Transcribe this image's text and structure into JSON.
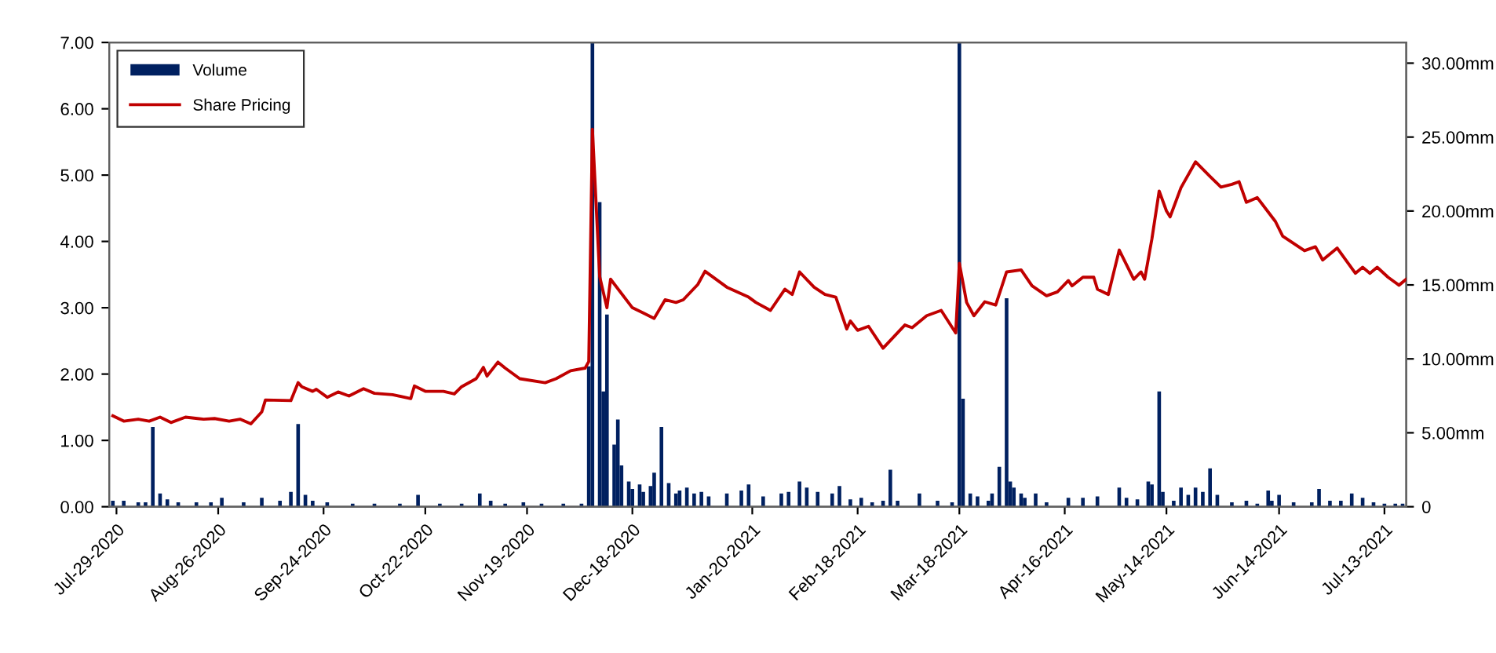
{
  "chart_data": {
    "type": "line",
    "xlim": [
      "2020-07-27",
      "2021-07-19"
    ],
    "xticks": [
      {
        "value": "2020-07-29",
        "label": "Jul-29-2020"
      },
      {
        "value": "2020-08-26",
        "label": "Aug-26-2020"
      },
      {
        "value": "2020-09-24",
        "label": "Sep-24-2020"
      },
      {
        "value": "2020-10-22",
        "label": "Oct-22-2020"
      },
      {
        "value": "2020-11-19",
        "label": "Nov-19-2020"
      },
      {
        "value": "2020-12-18",
        "label": "Dec-18-2020"
      },
      {
        "value": "2021-01-20",
        "label": "Jan-20-2021"
      },
      {
        "value": "2021-02-18",
        "label": "Feb-18-2021"
      },
      {
        "value": "2021-03-18",
        "label": "Mar-18-2021"
      },
      {
        "value": "2021-04-16",
        "label": "Apr-16-2021"
      },
      {
        "value": "2021-05-14",
        "label": "May-14-2021"
      },
      {
        "value": "2021-06-14",
        "label": "Jun-14-2021"
      },
      {
        "value": "2021-07-13",
        "label": "Jul-13-2021"
      }
    ],
    "ylim": [
      0,
      7
    ],
    "yticks": [
      {
        "value": 0,
        "label": "0.00"
      },
      {
        "value": 1,
        "label": "1.00"
      },
      {
        "value": 2,
        "label": "2.00"
      },
      {
        "value": 3,
        "label": "3.00"
      },
      {
        "value": 4,
        "label": "4.00"
      },
      {
        "value": 5,
        "label": "5.00"
      },
      {
        "value": 6,
        "label": "6.00"
      },
      {
        "value": 7,
        "label": "7.00"
      }
    ],
    "y2lim": [
      0,
      31.4
    ],
    "y2ticks": [
      {
        "value": 0,
        "label": "0"
      },
      {
        "value": 5,
        "label": "5.00mm"
      },
      {
        "value": 10,
        "label": "10.00mm"
      },
      {
        "value": 15,
        "label": "15.00mm"
      },
      {
        "value": 20,
        "label": "20.00mm"
      },
      {
        "value": 25,
        "label": "25.00mm"
      },
      {
        "value": 30,
        "label": "30.00mm"
      }
    ],
    "grid": false,
    "legend": "top left",
    "series": [
      {
        "name": "Volume",
        "type": "bar",
        "axis": "y2",
        "color": "#002060",
        "x": [
          "2020-07-28",
          "2020-07-31",
          "2020-08-04",
          "2020-08-06",
          "2020-08-08",
          "2020-08-10",
          "2020-08-12",
          "2020-08-15",
          "2020-08-20",
          "2020-08-24",
          "2020-08-27",
          "2020-09-02",
          "2020-09-07",
          "2020-09-12",
          "2020-09-15",
          "2020-09-17",
          "2020-09-19",
          "2020-09-21",
          "2020-09-25",
          "2020-10-02",
          "2020-10-08",
          "2020-10-15",
          "2020-10-20",
          "2020-10-26",
          "2020-11-01",
          "2020-11-06",
          "2020-11-09",
          "2020-11-13",
          "2020-11-18",
          "2020-11-23",
          "2020-11-29",
          "2020-12-04",
          "2020-12-06",
          "2020-12-07",
          "2020-12-09",
          "2020-12-10",
          "2020-12-11",
          "2020-12-13",
          "2020-12-14",
          "2020-12-15",
          "2020-12-17",
          "2020-12-18",
          "2020-12-20",
          "2020-12-21",
          "2020-12-23",
          "2020-12-24",
          "2020-12-26",
          "2020-12-28",
          "2020-12-30",
          "2020-12-31",
          "2021-01-02",
          "2021-01-04",
          "2021-01-06",
          "2021-01-08",
          "2021-01-13",
          "2021-01-17",
          "2021-01-19",
          "2021-01-23",
          "2021-01-28",
          "2021-01-30",
          "2021-02-02",
          "2021-02-04",
          "2021-02-07",
          "2021-02-11",
          "2021-02-13",
          "2021-02-16",
          "2021-02-19",
          "2021-02-22",
          "2021-02-25",
          "2021-02-27",
          "2021-03-01",
          "2021-03-07",
          "2021-03-12",
          "2021-03-16",
          "2021-03-18",
          "2021-03-19",
          "2021-03-21",
          "2021-03-23",
          "2021-03-26",
          "2021-03-27",
          "2021-03-29",
          "2021-03-31",
          "2021-04-01",
          "2021-04-02",
          "2021-04-04",
          "2021-04-05",
          "2021-04-08",
          "2021-04-11",
          "2021-04-17",
          "2021-04-21",
          "2021-04-25",
          "2021-05-01",
          "2021-05-03",
          "2021-05-06",
          "2021-05-09",
          "2021-05-10",
          "2021-05-12",
          "2021-05-13",
          "2021-05-16",
          "2021-05-18",
          "2021-05-20",
          "2021-05-22",
          "2021-05-24",
          "2021-05-26",
          "2021-05-28",
          "2021-06-01",
          "2021-06-05",
          "2021-06-08",
          "2021-06-11",
          "2021-06-12",
          "2021-06-14",
          "2021-06-18",
          "2021-06-23",
          "2021-06-25",
          "2021-06-28",
          "2021-07-01",
          "2021-07-04",
          "2021-07-07",
          "2021-07-10",
          "2021-07-13",
          "2021-07-16",
          "2021-07-18"
        ],
        "values": [
          0.4,
          0.4,
          0.3,
          0.3,
          5.4,
          0.9,
          0.5,
          0.3,
          0.3,
          0.3,
          0.6,
          0.3,
          0.6,
          0.4,
          1.0,
          5.6,
          0.8,
          0.4,
          0.3,
          0.2,
          0.2,
          0.2,
          0.8,
          0.2,
          0.2,
          0.9,
          0.4,
          0.2,
          0.3,
          0.2,
          0.2,
          0.2,
          9.5,
          31.4,
          20.6,
          7.8,
          13.0,
          4.2,
          5.9,
          2.8,
          1.7,
          1.2,
          1.5,
          1.0,
          1.4,
          2.3,
          5.4,
          1.6,
          0.9,
          1.1,
          1.3,
          0.9,
          1.0,
          0.7,
          0.9,
          1.1,
          1.5,
          0.7,
          0.9,
          1.0,
          1.7,
          1.3,
          1.0,
          0.9,
          1.4,
          0.5,
          0.6,
          0.3,
          0.4,
          2.5,
          0.4,
          0.9,
          0.4,
          0.3,
          31.4,
          7.3,
          0.9,
          0.7,
          0.4,
          0.9,
          2.7,
          14.1,
          1.7,
          1.3,
          0.9,
          0.6,
          0.9,
          0.3,
          0.6,
          0.6,
          0.7,
          1.3,
          0.6,
          0.5,
          1.7,
          1.5,
          7.8,
          1.0,
          0.4,
          1.3,
          0.8,
          1.3,
          1.0,
          2.6,
          0.8,
          0.3,
          0.4,
          0.2,
          1.1,
          0.4,
          0.8,
          0.3,
          0.3,
          1.2,
          0.4,
          0.4,
          0.9,
          0.6,
          0.3,
          0.2,
          0.2,
          0.2
        ]
      },
      {
        "name": "Share Pricing",
        "axis": "y",
        "color": "#c00000",
        "x": [
          "2020-07-28",
          "2020-07-31",
          "2020-08-04",
          "2020-08-07",
          "2020-08-10",
          "2020-08-13",
          "2020-08-17",
          "2020-08-22",
          "2020-08-25",
          "2020-08-29",
          "2020-09-01",
          "2020-09-04",
          "2020-09-07",
          "2020-09-08",
          "2020-09-15",
          "2020-09-17",
          "2020-09-18",
          "2020-09-21",
          "2020-09-22",
          "2020-09-25",
          "2020-09-28",
          "2020-10-01",
          "2020-10-05",
          "2020-10-08",
          "2020-10-13",
          "2020-10-18",
          "2020-10-19",
          "2020-10-22",
          "2020-10-27",
          "2020-10-30",
          "2020-11-01",
          "2020-11-05",
          "2020-11-07",
          "2020-11-08",
          "2020-11-11",
          "2020-11-13",
          "2020-11-17",
          "2020-11-24",
          "2020-11-27",
          "2020-12-01",
          "2020-12-05",
          "2020-12-06",
          "2020-12-07",
          "2020-12-09",
          "2020-12-11",
          "2020-12-12",
          "2020-12-18",
          "2020-12-21",
          "2020-12-24",
          "2020-12-27",
          "2020-12-30",
          "2021-01-01",
          "2021-01-05",
          "2021-01-07",
          "2021-01-13",
          "2021-01-19",
          "2021-01-21",
          "2021-01-25",
          "2021-01-29",
          "2021-01-31",
          "2021-02-02",
          "2021-02-06",
          "2021-02-09",
          "2021-02-12",
          "2021-02-15",
          "2021-02-16",
          "2021-02-18",
          "2021-02-21",
          "2021-02-25",
          "2021-03-03",
          "2021-03-05",
          "2021-03-09",
          "2021-03-13",
          "2021-03-17",
          "2021-03-18",
          "2021-03-20",
          "2021-03-22",
          "2021-03-25",
          "2021-03-28",
          "2021-03-31",
          "2021-04-04",
          "2021-04-07",
          "2021-04-11",
          "2021-04-14",
          "2021-04-17",
          "2021-04-18",
          "2021-04-21",
          "2021-04-24",
          "2021-04-25",
          "2021-04-28",
          "2021-05-01",
          "2021-05-05",
          "2021-05-07",
          "2021-05-08",
          "2021-05-10",
          "2021-05-12",
          "2021-05-14",
          "2021-05-15",
          "2021-05-18",
          "2021-05-22",
          "2021-05-26",
          "2021-05-29",
          "2021-06-01",
          "2021-06-03",
          "2021-06-05",
          "2021-06-08",
          "2021-06-13",
          "2021-06-15",
          "2021-06-21",
          "2021-06-24",
          "2021-06-26",
          "2021-06-30",
          "2021-07-05",
          "2021-07-07",
          "2021-07-09",
          "2021-07-11",
          "2021-07-14",
          "2021-07-17",
          "2021-07-19"
        ],
        "values": [
          1.37,
          1.29,
          1.32,
          1.29,
          1.35,
          1.27,
          1.35,
          1.32,
          1.33,
          1.29,
          1.32,
          1.25,
          1.43,
          1.61,
          1.6,
          1.87,
          1.81,
          1.74,
          1.77,
          1.65,
          1.73,
          1.67,
          1.78,
          1.71,
          1.69,
          1.63,
          1.82,
          1.74,
          1.74,
          1.7,
          1.81,
          1.93,
          2.1,
          1.97,
          2.18,
          2.09,
          1.93,
          1.87,
          1.93,
          2.05,
          2.09,
          2.19,
          5.69,
          3.47,
          3.0,
          3.43,
          3.0,
          2.92,
          2.84,
          3.12,
          3.08,
          3.12,
          3.35,
          3.55,
          3.31,
          3.16,
          3.08,
          2.96,
          3.28,
          3.2,
          3.54,
          3.31,
          3.2,
          3.16,
          2.68,
          2.8,
          2.66,
          2.72,
          2.39,
          2.74,
          2.7,
          2.88,
          2.96,
          2.62,
          3.67,
          3.08,
          2.88,
          3.09,
          3.04,
          3.54,
          3.57,
          3.33,
          3.18,
          3.24,
          3.41,
          3.33,
          3.46,
          3.46,
          3.28,
          3.2,
          3.87,
          3.43,
          3.54,
          3.43,
          4.04,
          4.76,
          4.46,
          4.37,
          4.81,
          5.2,
          4.98,
          4.82,
          4.86,
          4.9,
          4.59,
          4.66,
          4.3,
          4.08,
          3.86,
          3.92,
          3.72,
          3.9,
          3.52,
          3.61,
          3.52,
          3.61,
          3.46,
          3.34,
          3.43
        ]
      }
    ]
  }
}
